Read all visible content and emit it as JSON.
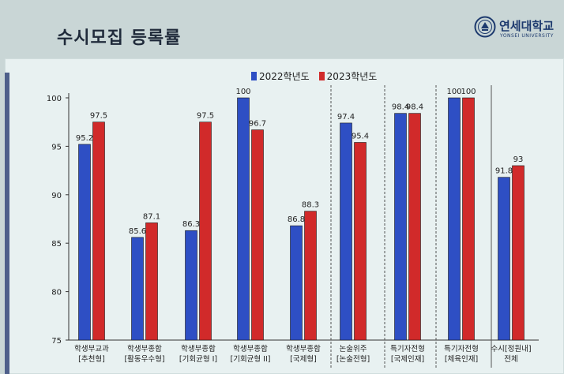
{
  "header": {
    "title": "수시모집  등록률",
    "logo_name": "연세대학교",
    "logo_sub": "YONSEI UNIVERSITY"
  },
  "colors": {
    "series_2022": "#2e4fc4",
    "series_2023": "#d12a2a"
  },
  "chart_data": {
    "type": "bar",
    "ylim": [
      75,
      100
    ],
    "yticks": [
      75,
      80,
      85,
      90,
      95,
      100
    ],
    "grid": false,
    "legend": "top-center",
    "categories": [
      [
        "학생부교과",
        "[추천형]"
      ],
      [
        "학생부종합",
        "[활동우수형]"
      ],
      [
        "학생부종합",
        "[기회균형 I]"
      ],
      [
        "학생부종합",
        "[기회균형 II]"
      ],
      [
        "학생부종합",
        "[국제형]"
      ],
      [
        "논술위주",
        "[논술전형]"
      ],
      [
        "특기자전형",
        "[국제인재]"
      ],
      [
        "특기자전형",
        "[체육인재]"
      ],
      [
        "수시[정원내]",
        "전체"
      ]
    ],
    "series": [
      {
        "name": "2022학년도",
        "values": [
          95.2,
          85.6,
          86.3,
          100,
          86.8,
          97.4,
          98.4,
          100,
          91.8
        ]
      },
      {
        "name": "2023학년도",
        "values": [
          97.5,
          87.1,
          97.5,
          96.7,
          88.3,
          95.4,
          98.4,
          100,
          93
        ]
      }
    ]
  }
}
